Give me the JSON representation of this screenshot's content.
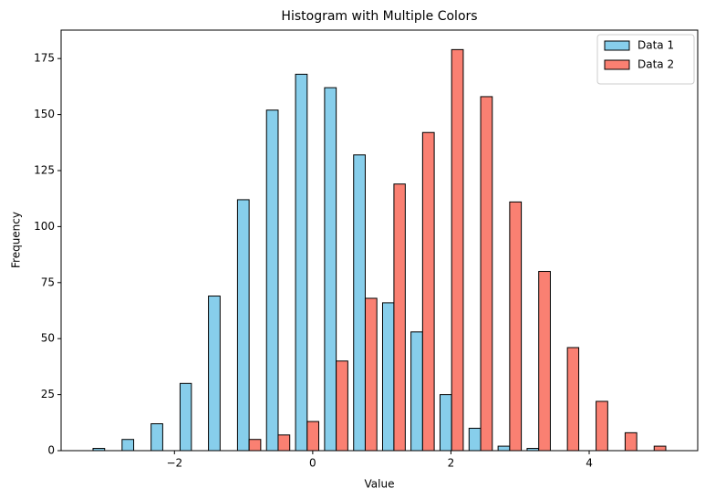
{
  "chart_data": {
    "type": "histogram",
    "title": "Histogram with Multiple Colors",
    "x_label": "Value",
    "y_label": "Frequency",
    "bins": [
      -3.22,
      -2.8,
      -2.38,
      -1.96,
      -1.55,
      -1.13,
      -0.71,
      -0.29,
      0.13,
      0.55,
      0.97,
      1.38,
      1.8,
      2.22,
      2.64,
      3.06,
      3.48,
      3.89,
      4.31,
      4.73,
      5.15
    ],
    "series": [
      {
        "name": "Data 1",
        "color": "#87ceeb",
        "values": [
          1,
          5,
          12,
          30,
          69,
          112,
          152,
          168,
          162,
          132,
          66,
          53,
          25,
          10,
          2,
          1,
          0,
          0,
          0,
          0
        ]
      },
      {
        "name": "Data 2",
        "color": "#fa8072",
        "values": [
          0,
          0,
          0,
          0,
          0,
          5,
          7,
          13,
          40,
          68,
          119,
          142,
          179,
          158,
          111,
          80,
          46,
          22,
          8,
          2
        ]
      }
    ],
    "edge_color": "#000000",
    "xlim": [
      -3.64,
      5.57
    ],
    "ylim": [
      0,
      187.7
    ],
    "xticks": [
      {
        "value": -2,
        "label": "−2"
      },
      0,
      2,
      4
    ],
    "yticks": [
      0,
      25,
      50,
      75,
      100,
      125,
      150,
      175
    ],
    "grid": false,
    "legend": "upper right"
  }
}
